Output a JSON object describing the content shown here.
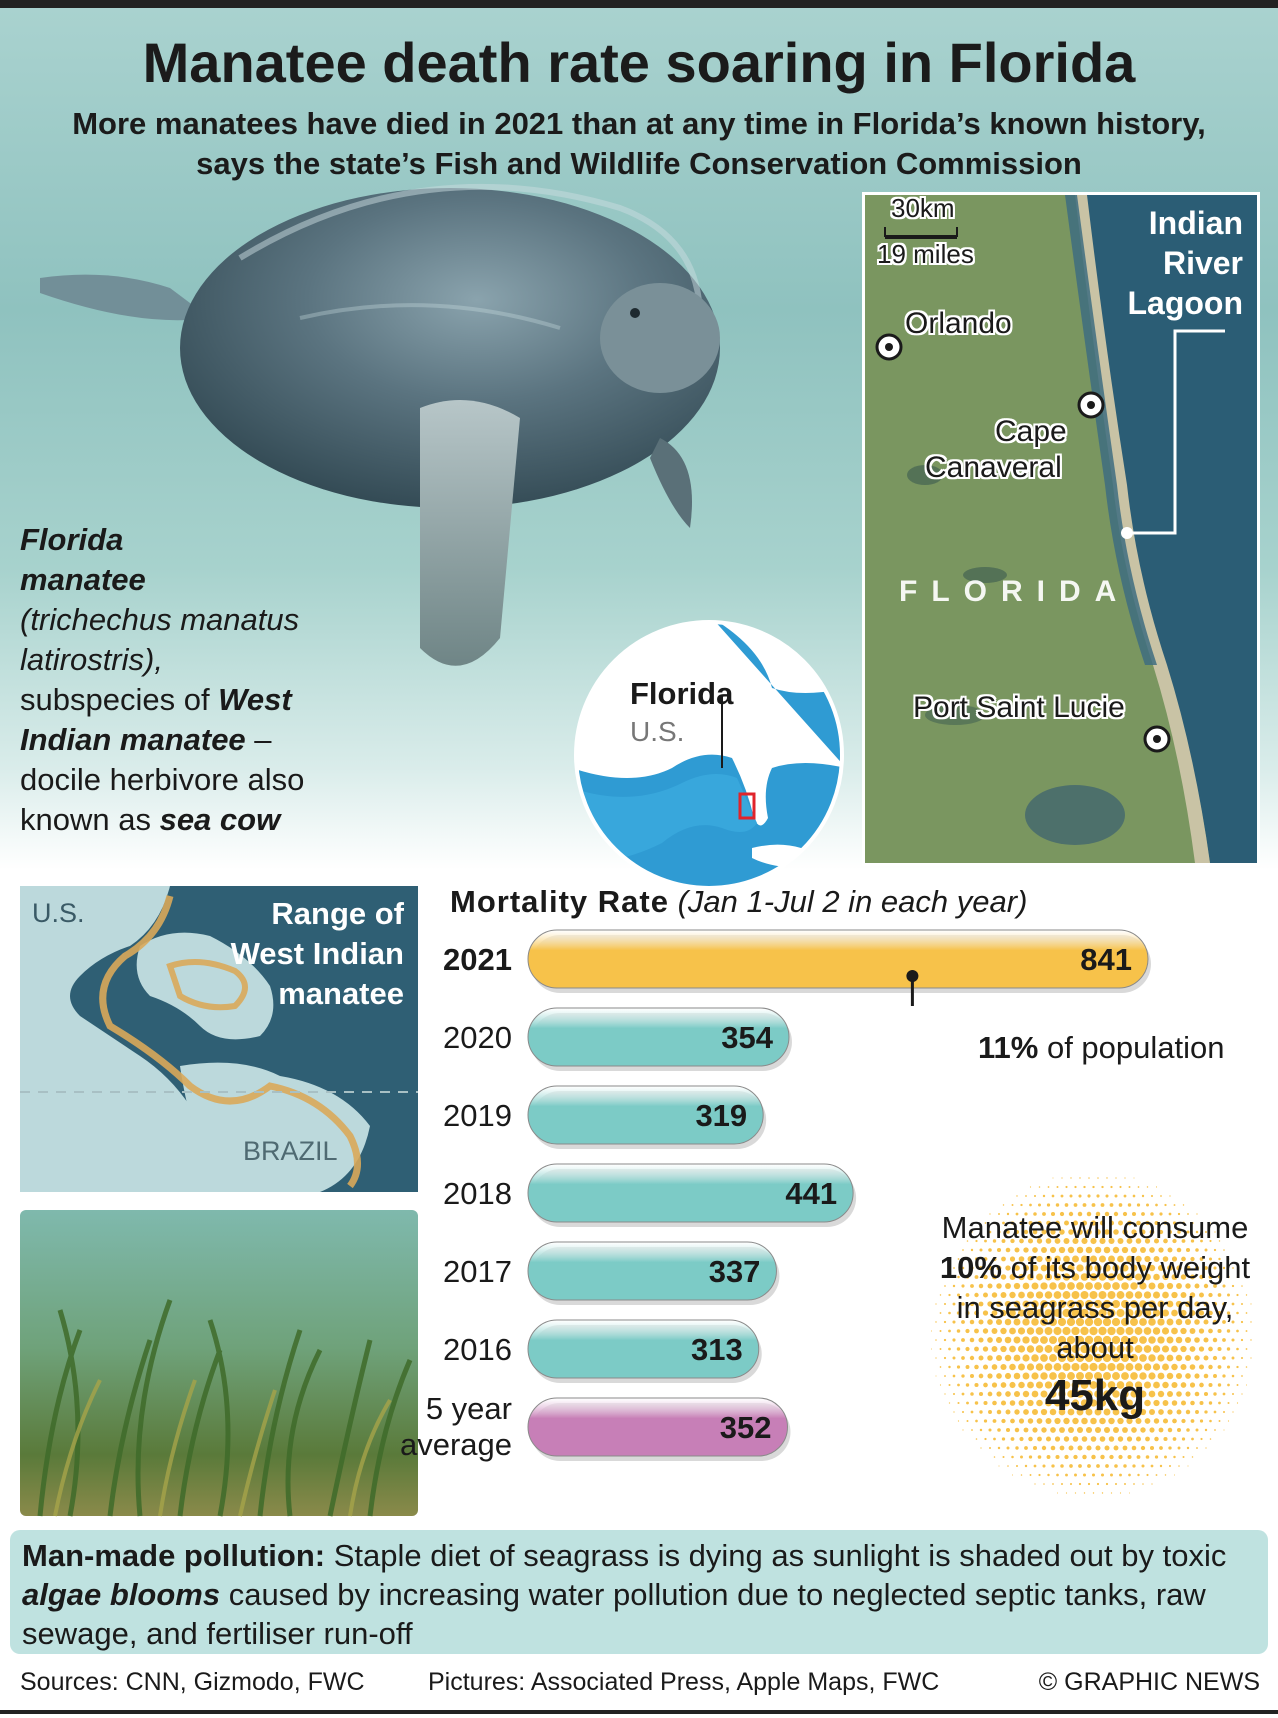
{
  "header": {
    "title": "Manatee death rate soaring in Florida",
    "subtitle": "More manatees have died in 2021 than at any time in Florida’s known history, says the state’s Fish and Wildlife Conservation Commission"
  },
  "caption": {
    "name_line1": "Florida",
    "name_line2": "manatee",
    "latin": "(trichechus manatus latirostris),",
    "sub_prefix": "subspecies of ",
    "sub_bold": "West Indian manatee",
    "sub_suffix": " – docile herbivore also known as ",
    "alias": "sea cow"
  },
  "globe": {
    "label_state": "Florida",
    "label_country": "U.S."
  },
  "florida_map": {
    "scale_km": "30km",
    "scale_miles": "19 miles",
    "lagoon_label": [
      "Indian",
      "River",
      "Lagoon"
    ],
    "city_orlando": "Orlando",
    "city_cape": [
      "Cape",
      "Canaveral"
    ],
    "city_psl": "Port Saint Lucie",
    "region_label": "FLORIDA"
  },
  "range_map": {
    "title": [
      "Range of",
      "West Indian",
      "manatee"
    ],
    "label_us": "U.S.",
    "label_brazil": "BRAZIL"
  },
  "chart_data": {
    "type": "bar",
    "title": "Mortality Rate",
    "title_note": "(Jan 1-Jul 2 in each year)",
    "categories": [
      "2021",
      "2020",
      "2019",
      "2018",
      "2017",
      "2016",
      "5 year average"
    ],
    "values": [
      841,
      354,
      319,
      441,
      337,
      313,
      352
    ],
    "colors": [
      "#f7c24a",
      "#7ccbc6",
      "#7ccbc6",
      "#7ccbc6",
      "#7ccbc6",
      "#7ccbc6",
      "#c77fb7"
    ],
    "annotation": {
      "category": "2021",
      "value_bold": "11%",
      "text": " of population"
    }
  },
  "fact": {
    "line_pre": "Manatee will consume ",
    "line_bold": "10%",
    "line_post": " of its body weight in seagrass per day, about",
    "big": "45kg"
  },
  "pollution": {
    "lead": "Man-made pollution:",
    "text_a": " Staple diet of seagrass is dying as sunlight is shaded out by toxic ",
    "emph": "algae blooms",
    "text_b": " caused by increasing water pollution due to neglected septic tanks, raw sewage, and fertiliser run-off"
  },
  "footer": {
    "sources": "Sources: CNN, Gizmodo, FWC",
    "pictures": "Pictures: Associated Press, Apple Maps, FWC",
    "credit": "© GRAPHIC NEWS"
  },
  "colors": {
    "accent_2021": "#f7c24a",
    "bar_teal": "#7ccbc6",
    "bar_average": "#c77fb7",
    "panel_bg": "#bfe2e0"
  }
}
